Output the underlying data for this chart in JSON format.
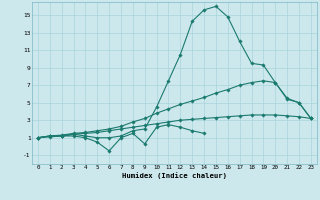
{
  "xlabel": "Humidex (Indice chaleur)",
  "bg_color": "#cde8ed",
  "grid_color": "#aad4dc",
  "line_color": "#1a7a6e",
  "xlim": [
    -0.5,
    23.5
  ],
  "ylim": [
    -2.0,
    16.5
  ],
  "xticks": [
    0,
    1,
    2,
    3,
    4,
    5,
    6,
    7,
    8,
    9,
    10,
    11,
    12,
    13,
    14,
    15,
    16,
    17,
    18,
    19,
    20,
    21,
    22,
    23
  ],
  "yticks": [
    -1,
    1,
    3,
    5,
    7,
    9,
    11,
    13,
    15
  ],
  "series": [
    [
      1.0,
      1.2,
      1.2,
      1.4,
      1.2,
      1.0,
      1.0,
      1.2,
      1.8,
      2.0,
      4.5,
      7.5,
      10.5,
      14.3,
      15.6,
      16.0,
      14.8,
      12.0,
      9.5,
      9.3,
      7.3,
      5.5,
      5.0,
      3.2
    ],
    [
      1.0,
      1.2,
      1.2,
      1.2,
      1.0,
      0.5,
      -0.5,
      1.0,
      1.5,
      0.3,
      2.2,
      2.5,
      2.2,
      1.8,
      1.5,
      null,
      null,
      null,
      null,
      null,
      null,
      null,
      null,
      null
    ],
    [
      1.0,
      1.2,
      1.3,
      1.5,
      1.6,
      1.8,
      2.0,
      2.3,
      2.8,
      3.2,
      3.8,
      4.3,
      4.8,
      5.2,
      5.6,
      6.1,
      6.5,
      7.0,
      7.3,
      7.5,
      7.3,
      5.4,
      5.0,
      3.2
    ],
    [
      1.0,
      1.1,
      1.2,
      1.4,
      1.5,
      1.6,
      1.8,
      2.0,
      2.2,
      2.4,
      2.6,
      2.8,
      3.0,
      3.1,
      3.2,
      3.3,
      3.4,
      3.5,
      3.6,
      3.6,
      3.6,
      3.5,
      3.4,
      3.2
    ]
  ]
}
